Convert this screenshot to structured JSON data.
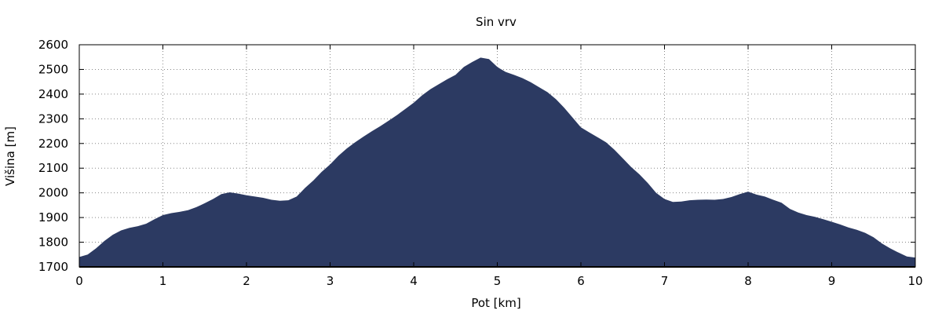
{
  "chart_data": {
    "type": "area",
    "title": "Sin vrv",
    "xlabel": "Pot [km]",
    "ylabel": "Višina [m]",
    "xlim": [
      0,
      10
    ],
    "ylim": [
      1700,
      2600
    ],
    "x_ticks": [
      0,
      1,
      2,
      3,
      4,
      5,
      6,
      7,
      8,
      9,
      10
    ],
    "y_ticks": [
      1700,
      1800,
      1900,
      2000,
      2100,
      2200,
      2300,
      2400,
      2500,
      2600
    ],
    "grid": true,
    "fill_color": "#2c3a62",
    "series": [
      {
        "x": [
          0,
          0.1,
          0.2,
          0.3,
          0.4,
          0.5,
          0.6,
          0.7,
          0.8,
          0.9,
          1.0,
          1.1,
          1.2,
          1.3,
          1.4,
          1.5,
          1.6,
          1.7,
          1.8,
          1.9,
          2.0,
          2.1,
          2.2,
          2.3,
          2.4,
          2.5,
          2.6,
          2.7,
          2.8,
          2.9,
          3.0,
          3.1,
          3.2,
          3.3,
          3.4,
          3.5,
          3.6,
          3.7,
          3.8,
          3.9,
          4.0,
          4.1,
          4.2,
          4.3,
          4.4,
          4.5,
          4.6,
          4.7,
          4.8,
          4.9,
          5.0,
          5.1,
          5.2,
          5.3,
          5.4,
          5.5,
          5.6,
          5.7,
          5.8,
          5.9,
          6.0,
          6.1,
          6.2,
          6.3,
          6.4,
          6.5,
          6.6,
          6.7,
          6.8,
          6.9,
          7.0,
          7.1,
          7.2,
          7.3,
          7.4,
          7.5,
          7.6,
          7.7,
          7.8,
          7.9,
          8.0,
          8.1,
          8.2,
          8.3,
          8.4,
          8.5,
          8.6,
          8.7,
          8.8,
          8.9,
          9.0,
          9.1,
          9.2,
          9.3,
          9.4,
          9.5,
          9.6,
          9.7,
          9.8,
          9.9,
          10.0
        ],
        "y": [
          1740,
          1750,
          1775,
          1805,
          1830,
          1848,
          1858,
          1865,
          1875,
          1893,
          1910,
          1918,
          1923,
          1930,
          1942,
          1958,
          1975,
          1995,
          2002,
          1997,
          1990,
          1985,
          1980,
          1972,
          1968,
          1970,
          1985,
          2020,
          2050,
          2085,
          2115,
          2150,
          2180,
          2205,
          2228,
          2250,
          2270,
          2292,
          2315,
          2340,
          2365,
          2395,
          2420,
          2440,
          2460,
          2478,
          2510,
          2530,
          2548,
          2542,
          2510,
          2490,
          2478,
          2465,
          2448,
          2428,
          2408,
          2380,
          2345,
          2305,
          2265,
          2245,
          2225,
          2205,
          2175,
          2140,
          2105,
          2075,
          2040,
          2000,
          1975,
          1963,
          1965,
          1970,
          1972,
          1973,
          1972,
          1975,
          1983,
          1995,
          2005,
          1993,
          1985,
          1972,
          1960,
          1935,
          1920,
          1910,
          1903,
          1893,
          1883,
          1872,
          1860,
          1850,
          1838,
          1820,
          1795,
          1775,
          1758,
          1742,
          1738
        ]
      }
    ]
  }
}
